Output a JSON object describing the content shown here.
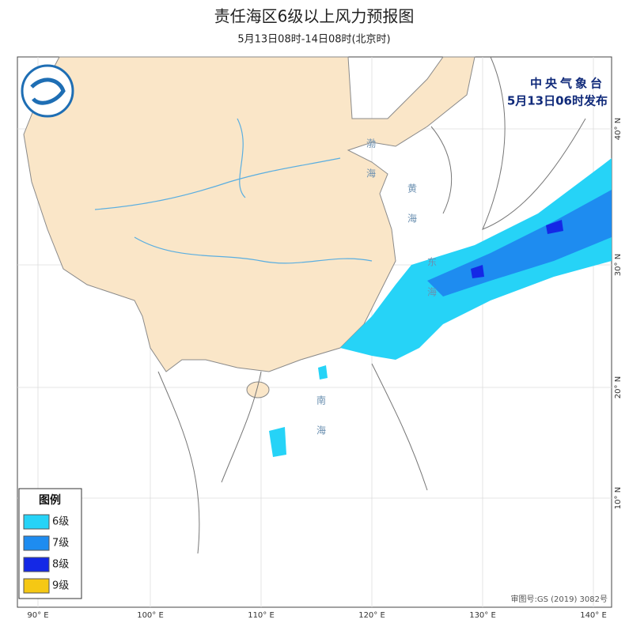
{
  "header": {
    "title": "责任海区6级以上风力预报图",
    "subtitle": "5月13日08时-14日08时(北京时)"
  },
  "issuer": {
    "name": "中央气象台",
    "time": "5月13日06时发布"
  },
  "legend": {
    "title": "图例",
    "items": [
      {
        "label": "6级",
        "color": "#26d3f7"
      },
      {
        "label": "7级",
        "color": "#1e8cf0"
      },
      {
        "label": "8级",
        "color": "#1428e6"
      },
      {
        "label": "9级",
        "color": "#f5c814"
      }
    ]
  },
  "map": {
    "lon_labels": [
      "90° E",
      "100° E",
      "110° E",
      "120° E",
      "130° E",
      "140° E"
    ],
    "lat_labels": [
      "40° N",
      "30° N",
      "20° N",
      "10° N"
    ],
    "sea_labels": [
      "渤海",
      "黄海",
      "东海",
      "南海"
    ],
    "review_number": "审图号:GS (2019) 3082号"
  }
}
